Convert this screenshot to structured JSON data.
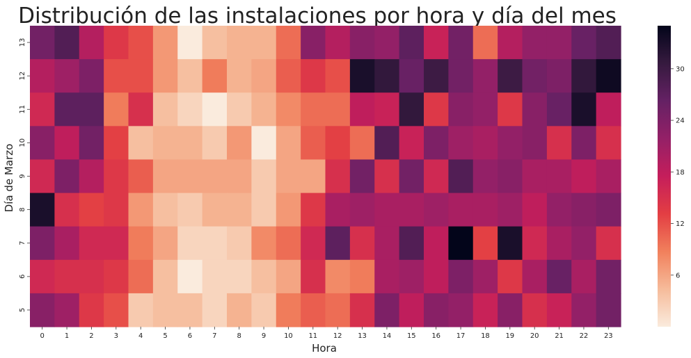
{
  "chart_data": {
    "type": "heatmap",
    "title": "Distribución de las instalaciones por hora y día del mes",
    "xlabel": "Hora",
    "ylabel": "Día de Marzo",
    "x_categories": [
      "0",
      "1",
      "2",
      "3",
      "4",
      "5",
      "6",
      "7",
      "8",
      "9",
      "10",
      "11",
      "12",
      "13",
      "14",
      "15",
      "16",
      "17",
      "18",
      "19",
      "20",
      "21",
      "22",
      "23"
    ],
    "y_categories": [
      "13",
      "12",
      "11",
      "10",
      "9",
      "8",
      "7",
      "6",
      "5"
    ],
    "values": [
      [
        25,
        28,
        19,
        14,
        12,
        7,
        0,
        4,
        5,
        5,
        10,
        23,
        19,
        23,
        22,
        27,
        17,
        25,
        10,
        19,
        22,
        22,
        26,
        28
      ],
      [
        19,
        21,
        24,
        12,
        12,
        7,
        4,
        9,
        5,
        6,
        11,
        14,
        12,
        33,
        31,
        26,
        30,
        25,
        22,
        30,
        25,
        24,
        31,
        34
      ],
      [
        16,
        27,
        27,
        9,
        15,
        4,
        2,
        0,
        3,
        5,
        8,
        10,
        10,
        18,
        17,
        31,
        14,
        23,
        22,
        14,
        23,
        26,
        33,
        18
      ],
      [
        23,
        18,
        25,
        13,
        4,
        5,
        5,
        3,
        7,
        0,
        6,
        11,
        13,
        10,
        28,
        17,
        24,
        21,
        20,
        22,
        23,
        15,
        24,
        15
      ],
      [
        16,
        24,
        19,
        14,
        11,
        6,
        6,
        6,
        6,
        3,
        6,
        6,
        15,
        25,
        15,
        25,
        16,
        28,
        22,
        23,
        20,
        20,
        18,
        20
      ],
      [
        33,
        15,
        13,
        14,
        7,
        4,
        3,
        5,
        5,
        3,
        7,
        14,
        20,
        21,
        20,
        20,
        21,
        20,
        20,
        21,
        18,
        22,
        23,
        24
      ],
      [
        24,
        20,
        16,
        16,
        9,
        6,
        2,
        2,
        3,
        8,
        10,
        16,
        27,
        15,
        20,
        28,
        18,
        35,
        13,
        33,
        16,
        20,
        22,
        15
      ],
      [
        16,
        15,
        15,
        14,
        10,
        4,
        0,
        2,
        2,
        4,
        6,
        15,
        8,
        9,
        20,
        21,
        18,
        24,
        21,
        14,
        20,
        26,
        20,
        25
      ],
      [
        23,
        21,
        14,
        12,
        3,
        4,
        4,
        2,
        5,
        3,
        9,
        11,
        10,
        15,
        24,
        18,
        23,
        22,
        17,
        23,
        15,
        17,
        22,
        25
      ]
    ],
    "colorbar": {
      "min": 0,
      "max": 35,
      "ticks": [
        6,
        12,
        18,
        24,
        30
      ]
    },
    "colormap": [
      "#faebdd",
      "#f6bb9a",
      "#f1805c",
      "#e33e43",
      "#c51e5b",
      "#942067",
      "#652164",
      "#361a3f",
      "#03051a"
    ],
    "grid": false,
    "legend": "colorbar-right"
  }
}
